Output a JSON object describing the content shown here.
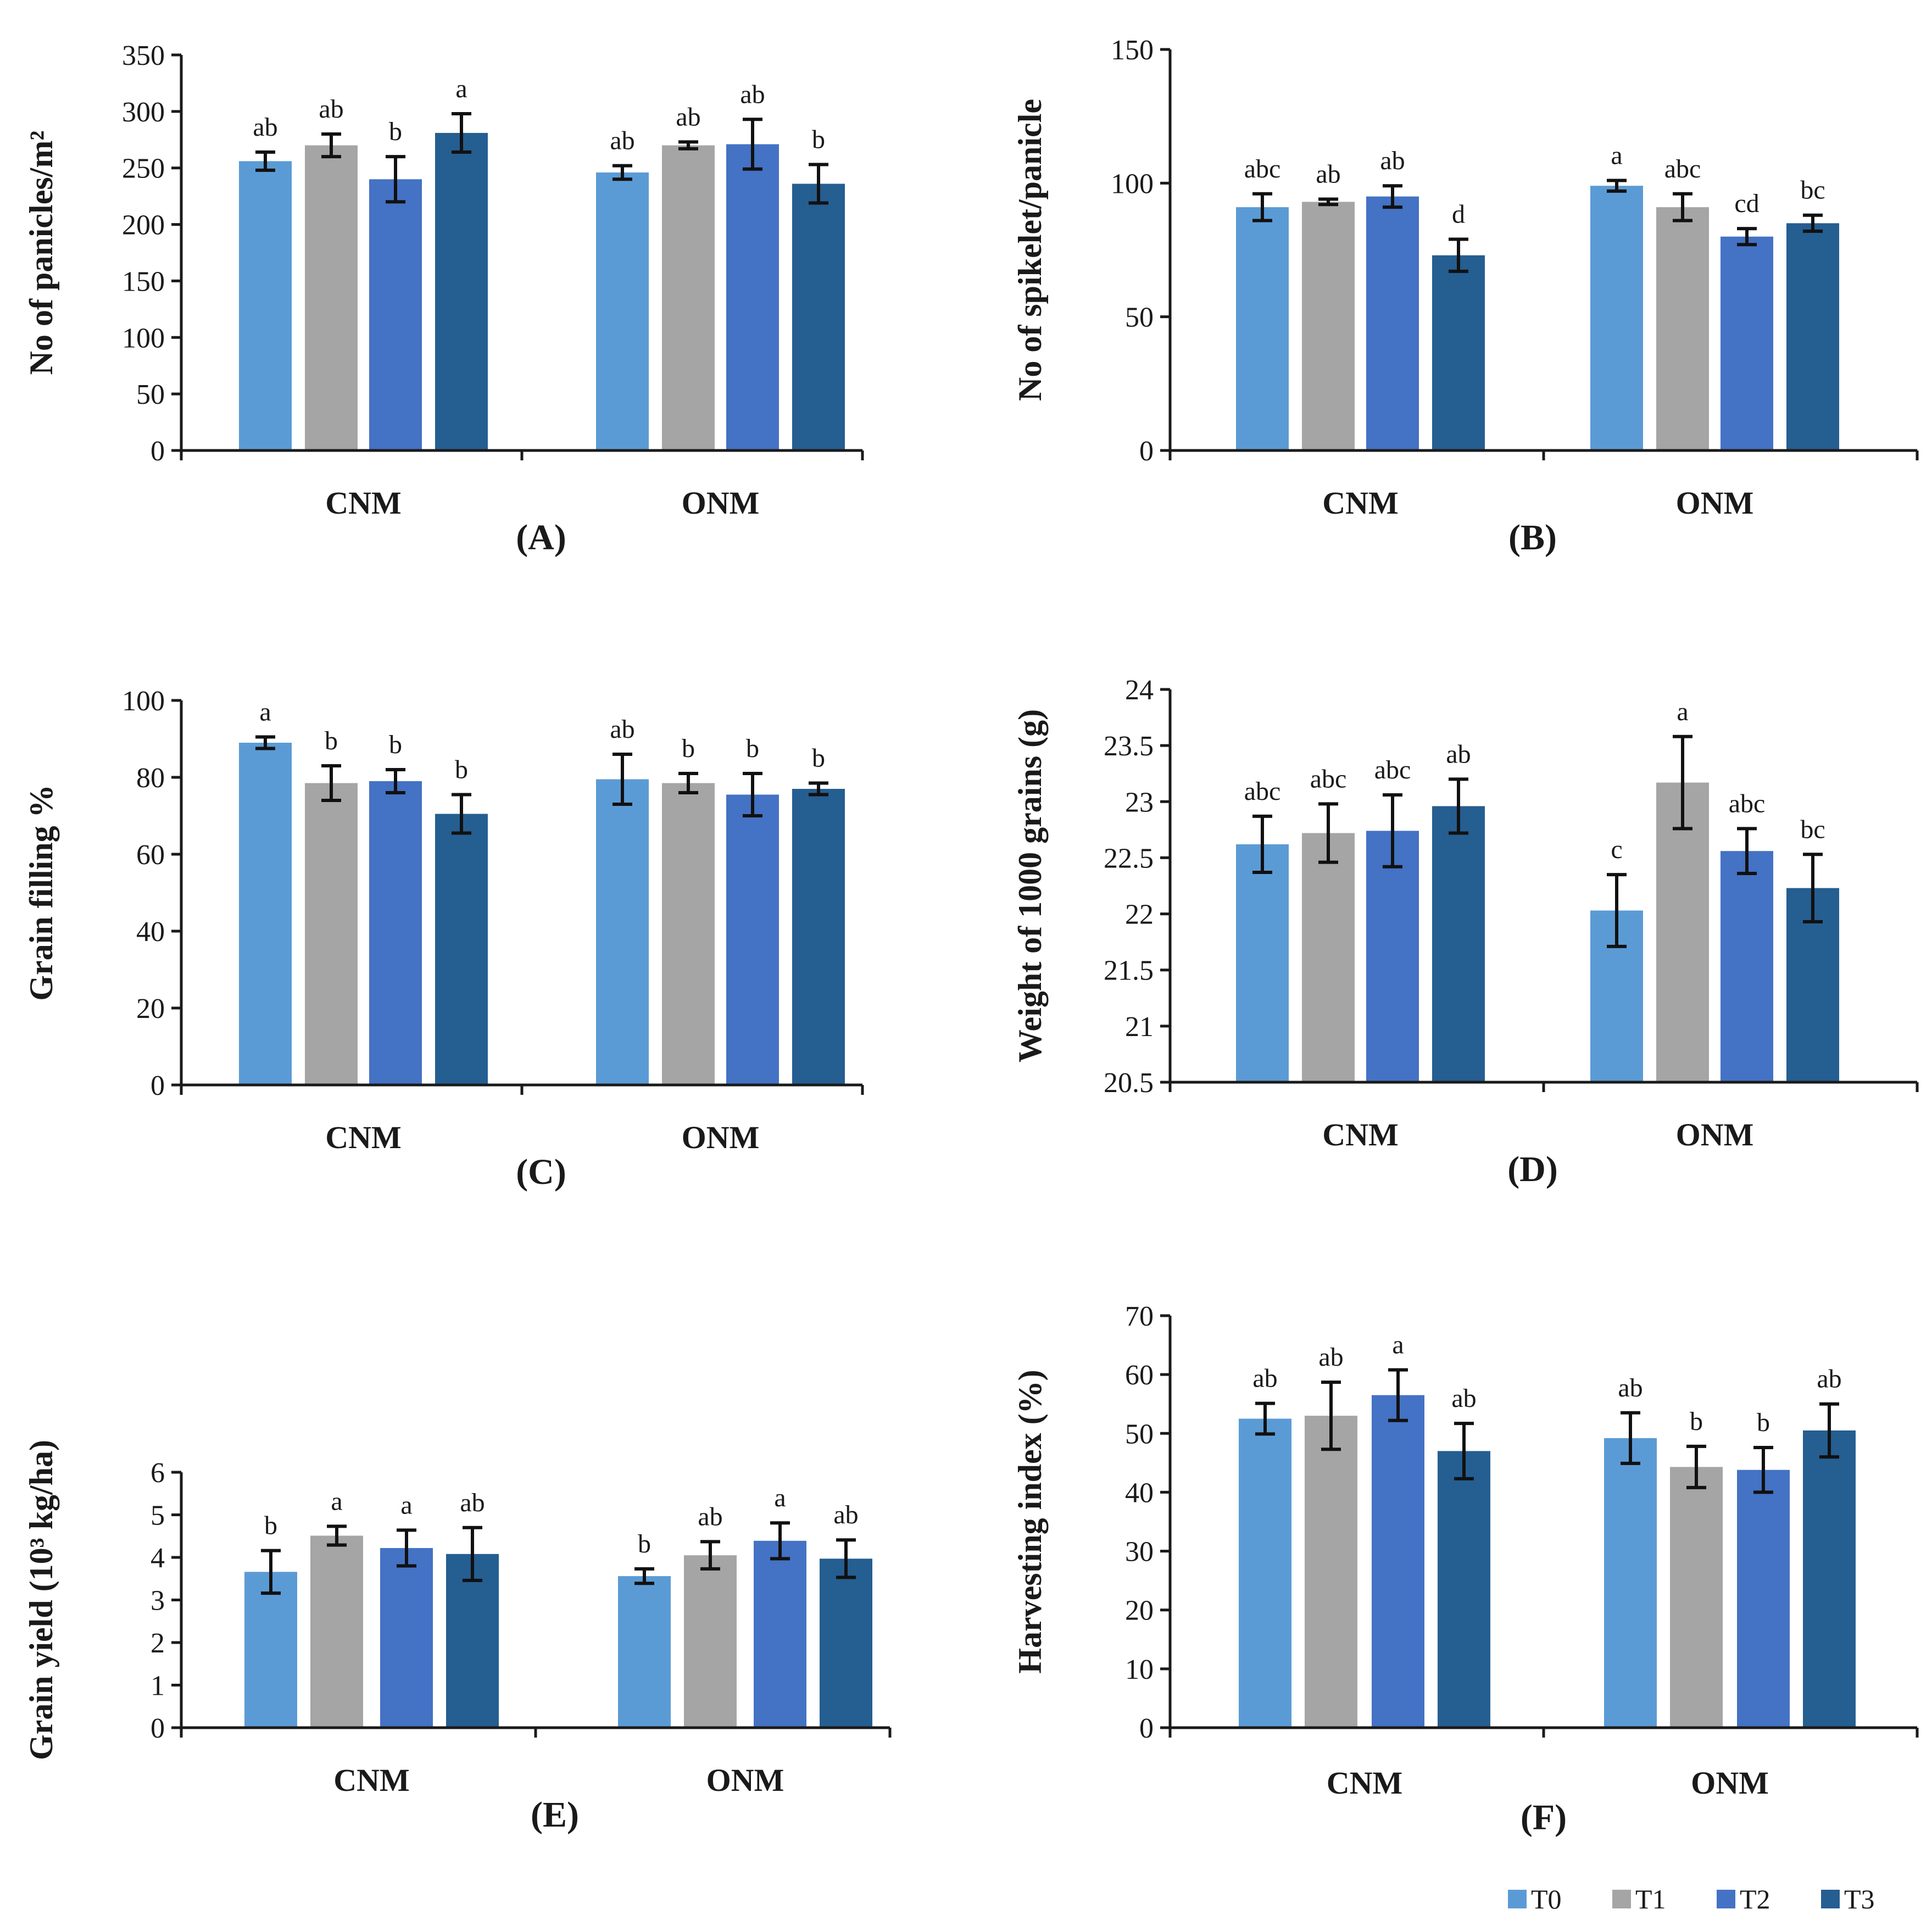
{
  "series_meta": [
    {
      "name": "T0",
      "color": "#5b9bd5"
    },
    {
      "name": "T1",
      "color": "#a5a5a5"
    },
    {
      "name": "T2",
      "color": "#4472c4"
    },
    {
      "name": "T3",
      "color": "#255e91"
    }
  ],
  "chart_data": [
    {
      "id": "A",
      "type": "bar",
      "panel_label": "(A)",
      "ylabel": "No of panicles/m²",
      "ylim": [
        0,
        350
      ],
      "yticks": [
        0,
        50,
        100,
        150,
        200,
        250,
        300,
        350
      ],
      "tick_labels": [
        "0",
        "50",
        "100",
        "150",
        "200",
        "250",
        "300",
        "350"
      ],
      "categories": [
        "CNM",
        "ONM"
      ],
      "series": [
        {
          "name": "T0",
          "values": [
            256,
            246
          ],
          "errors": [
            8,
            6
          ],
          "letters": [
            "ab",
            "ab"
          ]
        },
        {
          "name": "T1",
          "values": [
            270,
            270
          ],
          "errors": [
            10,
            3
          ],
          "letters": [
            "ab",
            "ab"
          ]
        },
        {
          "name": "T2",
          "values": [
            240,
            271
          ],
          "errors": [
            20,
            22
          ],
          "letters": [
            "b",
            "ab"
          ]
        },
        {
          "name": "T3",
          "values": [
            281,
            236
          ],
          "errors": [
            17,
            17
          ],
          "letters": [
            "a",
            "b"
          ]
        }
      ]
    },
    {
      "id": "B",
      "type": "bar",
      "panel_label": "(B)",
      "ylabel": "No of spikelet/panicle",
      "ylim": [
        0,
        150
      ],
      "yticks": [
        0,
        50,
        100,
        150
      ],
      "tick_labels": [
        "0",
        "50",
        "100",
        "150"
      ],
      "categories": [
        "CNM",
        "ONM"
      ],
      "series": [
        {
          "name": "T0",
          "values": [
            91,
            99
          ],
          "errors": [
            5,
            2
          ],
          "letters": [
            "abc",
            "a"
          ]
        },
        {
          "name": "T1",
          "values": [
            93,
            91
          ],
          "errors": [
            1,
            5
          ],
          "letters": [
            "ab",
            "abc"
          ]
        },
        {
          "name": "T2",
          "values": [
            95,
            80
          ],
          "errors": [
            4,
            3
          ],
          "letters": [
            "ab",
            "cd"
          ]
        },
        {
          "name": "T3",
          "values": [
            73,
            85
          ],
          "errors": [
            6,
            3
          ],
          "letters": [
            "d",
            "bc"
          ]
        }
      ]
    },
    {
      "id": "C",
      "type": "bar",
      "panel_label": "(C)",
      "ylabel": "Grain filling %",
      "ylim": [
        0,
        100
      ],
      "yticks": [
        0,
        20,
        40,
        60,
        80,
        100
      ],
      "tick_labels": [
        "0",
        "20",
        "40",
        "60",
        "80",
        "100"
      ],
      "categories": [
        "CNM",
        "ONM"
      ],
      "series": [
        {
          "name": "T0",
          "values": [
            89,
            79.5
          ],
          "errors": [
            1.5,
            6.5
          ],
          "letters": [
            "a",
            "ab"
          ]
        },
        {
          "name": "T1",
          "values": [
            78.5,
            78.5
          ],
          "errors": [
            4.5,
            2.5
          ],
          "letters": [
            "b",
            "b"
          ]
        },
        {
          "name": "T2",
          "values": [
            79,
            75.5
          ],
          "errors": [
            3,
            5.5
          ],
          "letters": [
            "b",
            "b"
          ]
        },
        {
          "name": "T3",
          "values": [
            70.5,
            77
          ],
          "errors": [
            5,
            1.5
          ],
          "letters": [
            "b",
            "b"
          ]
        }
      ]
    },
    {
      "id": "D",
      "type": "bar",
      "panel_label": "(D)",
      "ylabel": "Weight of 1000 grains (g)",
      "ylim": [
        20.5,
        24
      ],
      "yticks": [
        20.5,
        21,
        21.5,
        22,
        22.5,
        23,
        23.5,
        24
      ],
      "tick_labels": [
        "20.5",
        "21",
        "21.5",
        "22",
        "22.5",
        "23",
        "23.5",
        "24"
      ],
      "categories": [
        "CNM",
        "ONM"
      ],
      "series": [
        {
          "name": "T0",
          "values": [
            22.62,
            22.03
          ],
          "errors": [
            0.25,
            0.32
          ],
          "letters": [
            "abc",
            "c"
          ]
        },
        {
          "name": "T1",
          "values": [
            22.72,
            23.17
          ],
          "errors": [
            0.26,
            0.41
          ],
          "letters": [
            "abc",
            "a"
          ]
        },
        {
          "name": "T2",
          "values": [
            22.74,
            22.56
          ],
          "errors": [
            0.32,
            0.2
          ],
          "letters": [
            "abc",
            "abc"
          ]
        },
        {
          "name": "T3",
          "values": [
            22.96,
            22.23
          ],
          "errors": [
            0.24,
            0.3
          ],
          "letters": [
            "ab",
            "bc"
          ]
        }
      ]
    },
    {
      "id": "E",
      "type": "bar",
      "panel_label": "(E)",
      "ylabel": "Grain yield (10³ kg/ha)",
      "ylim": [
        0,
        6
      ],
      "yticks": [
        0,
        1,
        2,
        3,
        4,
        5,
        6
      ],
      "tick_labels": [
        "0",
        "1",
        "2",
        "3",
        "4",
        "5",
        "6"
      ],
      "categories": [
        "CNM",
        "ONM"
      ],
      "series": [
        {
          "name": "T0",
          "values": [
            3.66,
            3.56
          ],
          "errors": [
            0.5,
            0.17
          ],
          "letters": [
            "b",
            "b"
          ]
        },
        {
          "name": "T1",
          "values": [
            4.51,
            4.05
          ],
          "errors": [
            0.22,
            0.32
          ],
          "letters": [
            "a",
            "ab"
          ]
        },
        {
          "name": "T2",
          "values": [
            4.22,
            4.39
          ],
          "errors": [
            0.42,
            0.42
          ],
          "letters": [
            "a",
            "a"
          ]
        },
        {
          "name": "T3",
          "values": [
            4.08,
            3.97
          ],
          "errors": [
            0.62,
            0.44
          ],
          "letters": [
            "ab",
            "ab"
          ]
        }
      ]
    },
    {
      "id": "F",
      "type": "bar",
      "panel_label": "(F)",
      "ylabel": "Harvesting index (%)",
      "ylim": [
        0,
        70
      ],
      "yticks": [
        0,
        10,
        20,
        30,
        40,
        50,
        60,
        70
      ],
      "tick_labels": [
        "0",
        "10",
        "20",
        "30",
        "40",
        "50",
        "60",
        "70"
      ],
      "categories": [
        "CNM",
        "ONM"
      ],
      "series": [
        {
          "name": "T0",
          "values": [
            52.5,
            49.2
          ],
          "errors": [
            2.6,
            4.3
          ],
          "letters": [
            "ab",
            "ab"
          ]
        },
        {
          "name": "T1",
          "values": [
            53,
            44.3
          ],
          "errors": [
            5.7,
            3.5
          ],
          "letters": [
            "ab",
            "b"
          ]
        },
        {
          "name": "T2",
          "values": [
            56.5,
            43.8
          ],
          "errors": [
            4.3,
            3.8
          ],
          "letters": [
            "a",
            "b"
          ]
        },
        {
          "name": "T3",
          "values": [
            47,
            50.5
          ],
          "errors": [
            4.7,
            4.5
          ],
          "letters": [
            "ab",
            "ab"
          ]
        }
      ]
    }
  ]
}
